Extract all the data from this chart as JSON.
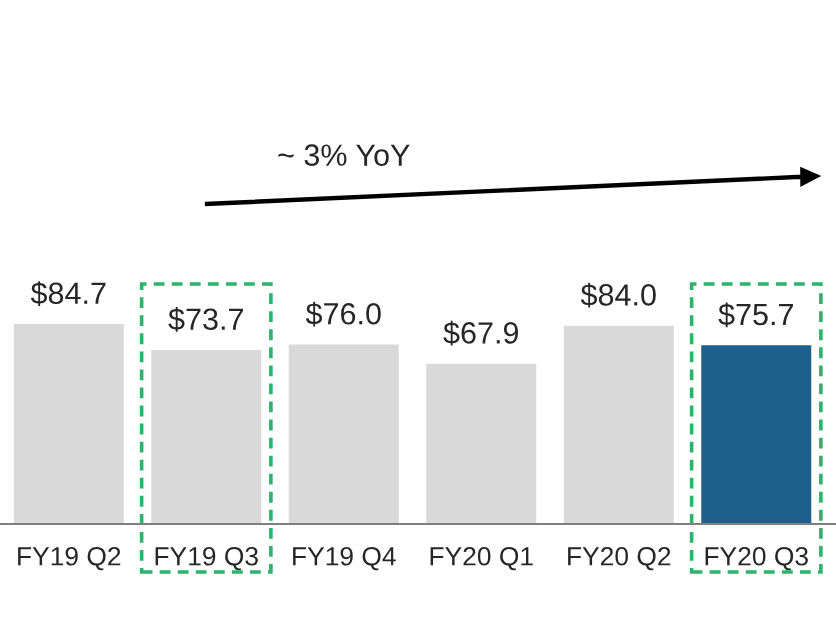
{
  "chart_data": {
    "type": "bar",
    "categories": [
      "FY19 Q2",
      "FY19 Q3",
      "FY19 Q4",
      "FY20 Q1",
      "FY20 Q2",
      "FY20 Q3"
    ],
    "values": [
      84.7,
      73.7,
      76.0,
      67.9,
      84.0,
      75.7
    ],
    "colors": [
      "#d9d9d9",
      "#d9d9d9",
      "#d9d9d9",
      "#d9d9d9",
      "#d9d9d9",
      "#1f5f8b"
    ],
    "value_labels": [
      "$84.7",
      "$73.7",
      "$76.0",
      "$67.9",
      "$84.0",
      "$75.7"
    ],
    "annotations": [
      "~ 3% YoY"
    ],
    "grid": false,
    "legend": false
  }
}
